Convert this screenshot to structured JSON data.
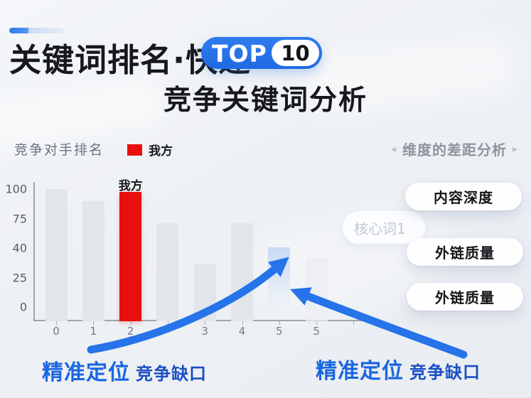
{
  "header": {
    "title": "关键词排名·快速",
    "badge": {
      "label": "TOP",
      "number": "10"
    },
    "subtitle": "竞争关键词分析"
  },
  "chart_data": {
    "type": "bar",
    "title": "竞争对手排名",
    "legend": [
      {
        "label": "我方",
        "color": "#e8100f"
      }
    ],
    "legend_position": "top",
    "categories": [
      "0",
      "1",
      "2",
      "",
      "3",
      "4",
      "5",
      "5"
    ],
    "values": [
      100,
      91,
      98,
      74,
      43,
      74,
      56,
      48
    ],
    "highlight": {
      "index": 2,
      "label": "我方",
      "color": "#e8100f"
    },
    "ghost_bar_index": 6,
    "faint_bar_index": 7,
    "bar_default_color": "#e2e5ea",
    "yticks": [
      "100",
      "75",
      "40",
      "25",
      "0"
    ],
    "ylim": [
      0,
      100
    ],
    "grid": false,
    "xlabel": "",
    "ylabel": ""
  },
  "side_panel": {
    "header": "维度的差距分析",
    "left_arrow": "◂",
    "right_arrow": "▸",
    "pills": [
      "内容深度",
      "外链质量",
      "外链质量"
    ]
  },
  "watermark": {
    "label": "核心词1"
  },
  "captions": {
    "left": {
      "strong": "精准定位",
      "rest": "竞争缺口"
    },
    "right": {
      "strong": "精准定位",
      "rest": "竞争缺口"
    }
  },
  "colors": {
    "accent_blue": "#2673ea",
    "our_red": "#e8100f",
    "caption_strong_blue": "#1a66e0",
    "caption_rest_blue": "#1c4fc5",
    "bar_gray": "#e2e5ea"
  }
}
